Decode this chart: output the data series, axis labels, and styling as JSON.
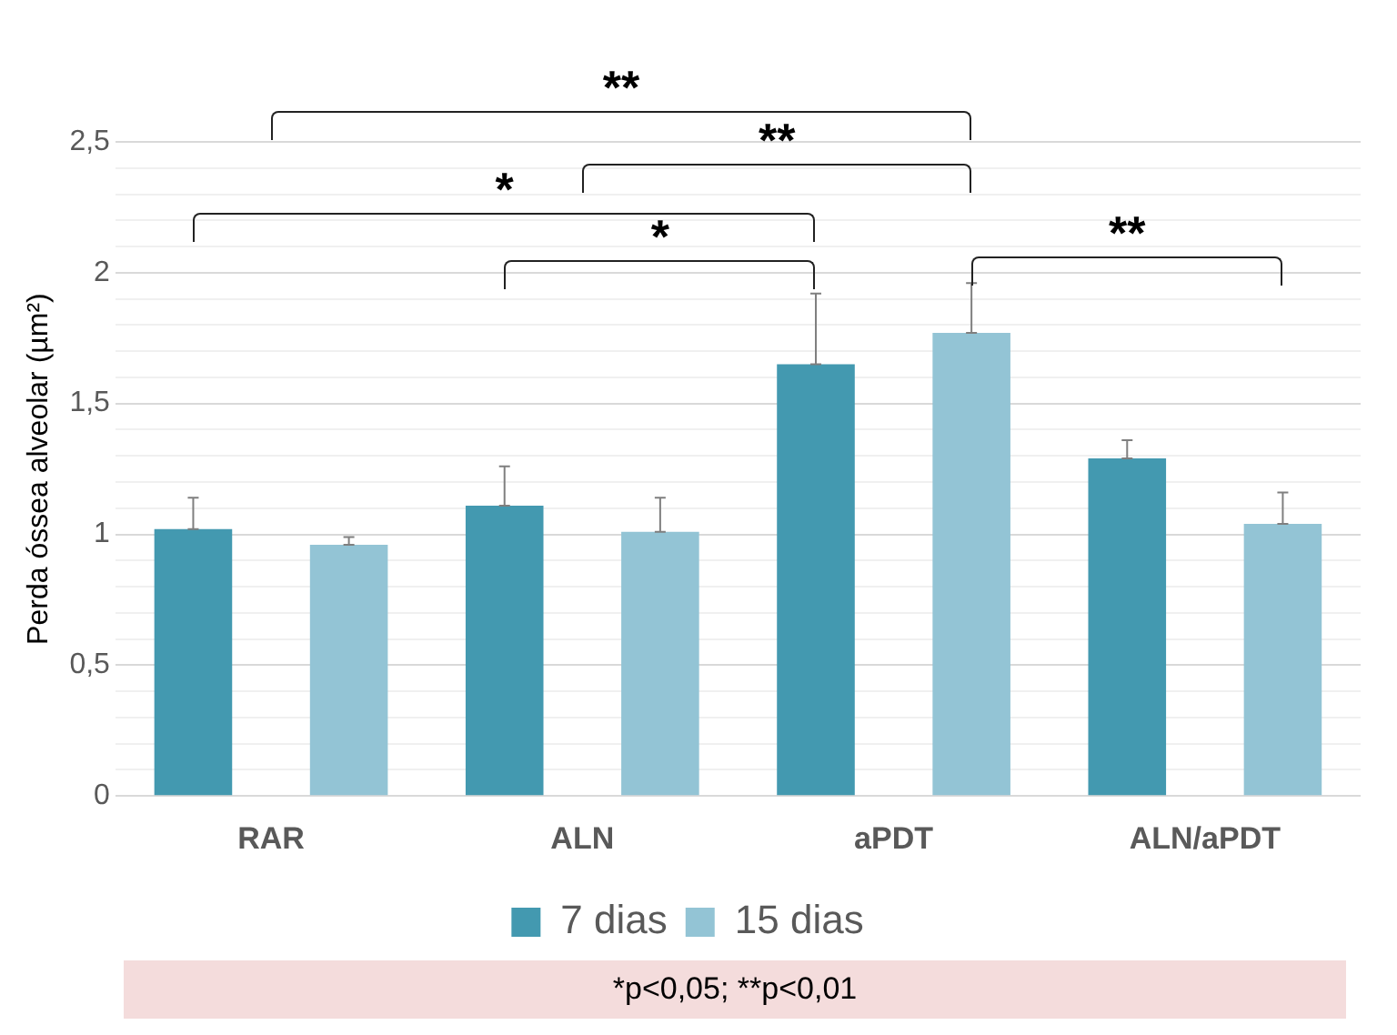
{
  "chart_data": {
    "type": "bar",
    "ylabel": "Perda óssea alveolar (µm²)",
    "categories": [
      "RAR",
      "ALN",
      "aPDT",
      "ALN/aPDT"
    ],
    "series": [
      {
        "name": "7 dias",
        "color": "#4399b0",
        "values": [
          1.02,
          1.11,
          1.65,
          1.29
        ],
        "errors": [
          [
            1.02,
            1.14
          ],
          [
            1.11,
            1.26
          ],
          [
            1.65,
            1.92
          ],
          [
            1.29,
            1.36
          ]
        ]
      },
      {
        "name": "15 dias",
        "color": "#93c4d5",
        "values": [
          0.96,
          1.01,
          1.77,
          1.04
        ],
        "errors": [
          [
            0.96,
            0.99
          ],
          [
            1.01,
            1.14
          ],
          [
            1.77,
            1.96
          ],
          [
            1.04,
            1.16
          ]
        ]
      }
    ],
    "ylim": [
      0,
      2.5
    ],
    "yticks": [
      0,
      {
        "value": 0.1,
        "label": null
      },
      {
        "value": 0.2,
        "label": null
      },
      {
        "value": 0.3,
        "label": null
      },
      {
        "value": 0.4,
        "label": null
      },
      {
        "value": 0.5,
        "label": "0,5"
      },
      {
        "value": 0.6,
        "label": null
      },
      {
        "value": 0.7,
        "label": null
      },
      {
        "value": 0.8,
        "label": null
      },
      {
        "value": 0.9,
        "label": null
      },
      1,
      {
        "value": 1.1,
        "label": null
      },
      {
        "value": 1.2,
        "label": null
      },
      {
        "value": 1.3,
        "label": null
      },
      {
        "value": 1.4,
        "label": null
      },
      {
        "value": 1.5,
        "label": "1,5"
      },
      {
        "value": 1.6,
        "label": null
      },
      {
        "value": 1.7,
        "label": null
      },
      {
        "value": 1.8,
        "label": null
      },
      {
        "value": 1.9,
        "label": null
      },
      2,
      {
        "value": 2.1,
        "label": null
      },
      {
        "value": 2.2,
        "label": null
      },
      {
        "value": 2.3,
        "label": null
      },
      {
        "value": 2.4,
        "label": null
      },
      {
        "value": 2.5,
        "label": "2,5"
      }
    ],
    "grid": "y",
    "legend": "bottom",
    "annotations": [
      "**",
      "**",
      "*",
      "*",
      "**",
      "*p<0,05; **p<0,01"
    ]
  }
}
